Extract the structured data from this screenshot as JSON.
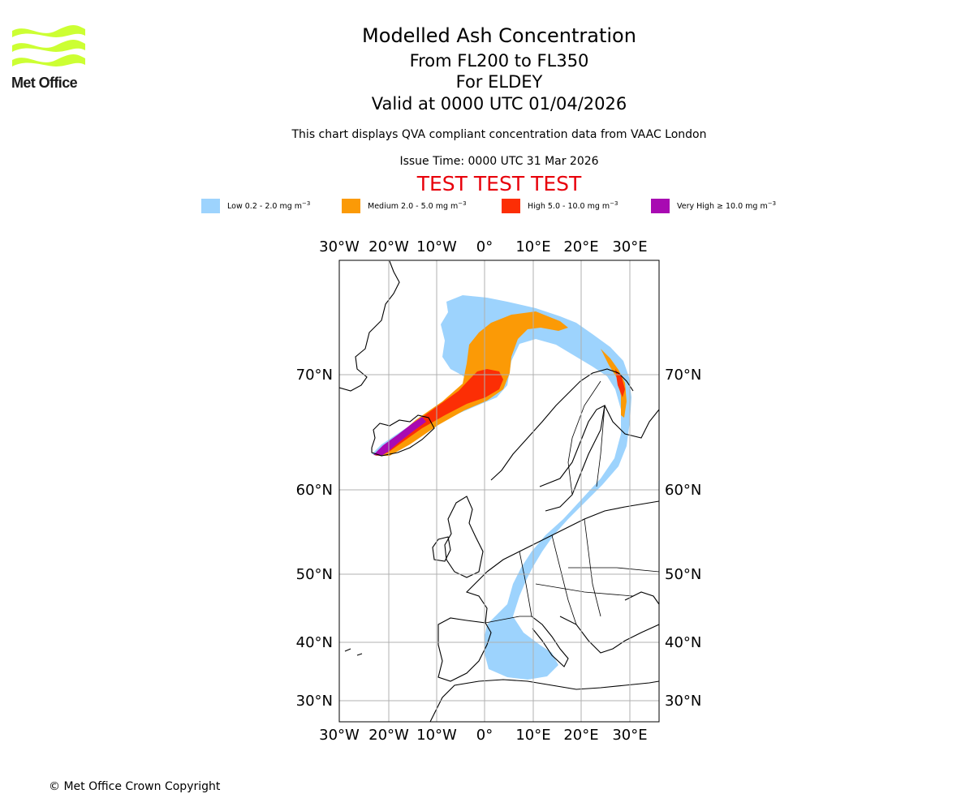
{
  "branding": {
    "logo_text": "Met Office",
    "logo_color": "#ccff33"
  },
  "header": {
    "title": "Modelled Ash Concentration",
    "levels": "From FL200 to FL350",
    "region": "For ELDEY",
    "valid": "Valid at 0000 UTC 01/04/2026",
    "description": "This chart displays QVA compliant concentration data from VAAC London",
    "issue_time": "Issue Time: 0000 UTC 31 Mar 2026",
    "test_banner": "TEST TEST TEST",
    "test_color": "#e8000b"
  },
  "legend": [
    {
      "name": "Low",
      "range": "0.2 - 2.0 mg m",
      "color": "#9dd3fd"
    },
    {
      "name": "Medium",
      "range": "2.0 - 5.0 mg m",
      "color": "#fb9a06"
    },
    {
      "name": "High",
      "range": "5.0 - 10.0 mg m",
      "color": "#fc2e05"
    },
    {
      "name": "Very High",
      "range": "≥  10.0 mg m",
      "color": "#a80ab2"
    }
  ],
  "unit_exponent": "−3",
  "map": {
    "lon_ticks": [
      "30°W",
      "20°W",
      "10°W",
      "0°",
      "10°E",
      "20°E",
      "30°E"
    ],
    "lat_ticks": [
      "70°N",
      "60°N",
      "50°N",
      "40°N",
      "30°N"
    ],
    "gridline_color": "#b0b0b0"
  },
  "footer": {
    "copyright": "© Met Office Crown Copyright"
  }
}
